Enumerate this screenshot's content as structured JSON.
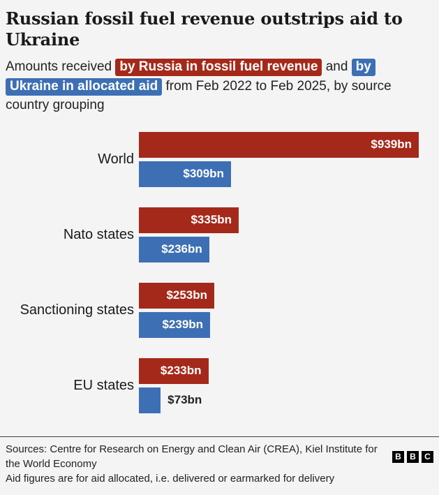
{
  "header": {
    "title": "Russian fossil fuel revenue outstrips aid to Ukraine",
    "subtitle_prefix": "Amounts received",
    "chip_russia": "by Russia in fossil fuel revenue",
    "subtitle_and": "and",
    "chip_ukraine": "by Ukraine in allocated aid",
    "subtitle_suffix": "from Feb 2022 to Feb 2025, by source country grouping"
  },
  "chart_data": {
    "type": "bar",
    "orientation": "horizontal",
    "title": "Russian fossil fuel revenue outstrips aid to Ukraine",
    "categories": [
      "World",
      "Nato states",
      "Sanctioning states",
      "EU states"
    ],
    "series": [
      {
        "name": "by Russia in fossil fuel revenue",
        "color": "#a5291a",
        "values": [
          939,
          335,
          253,
          233
        ],
        "labels": [
          "$939bn",
          "$335bn",
          "$253bn",
          "$233bn"
        ]
      },
      {
        "name": "by Ukraine in allocated aid",
        "color": "#3d6fb4",
        "values": [
          309,
          236,
          239,
          73
        ],
        "labels": [
          "$309bn",
          "$236bn",
          "$239bn",
          "$73bn"
        ]
      }
    ],
    "xlim": [
      0,
      939
    ],
    "grid": false,
    "legend": "inline-in-subtitle",
    "value_labels": "on-bars"
  },
  "footer": {
    "sources": "Sources: Centre for Research on Energy and Clean Air (CREA), Kiel Institute for the World Economy",
    "note": "Aid figures are for aid allocated, i.e. delivered or earmarked for delivery",
    "logo_letters": [
      "B",
      "B",
      "C"
    ]
  }
}
